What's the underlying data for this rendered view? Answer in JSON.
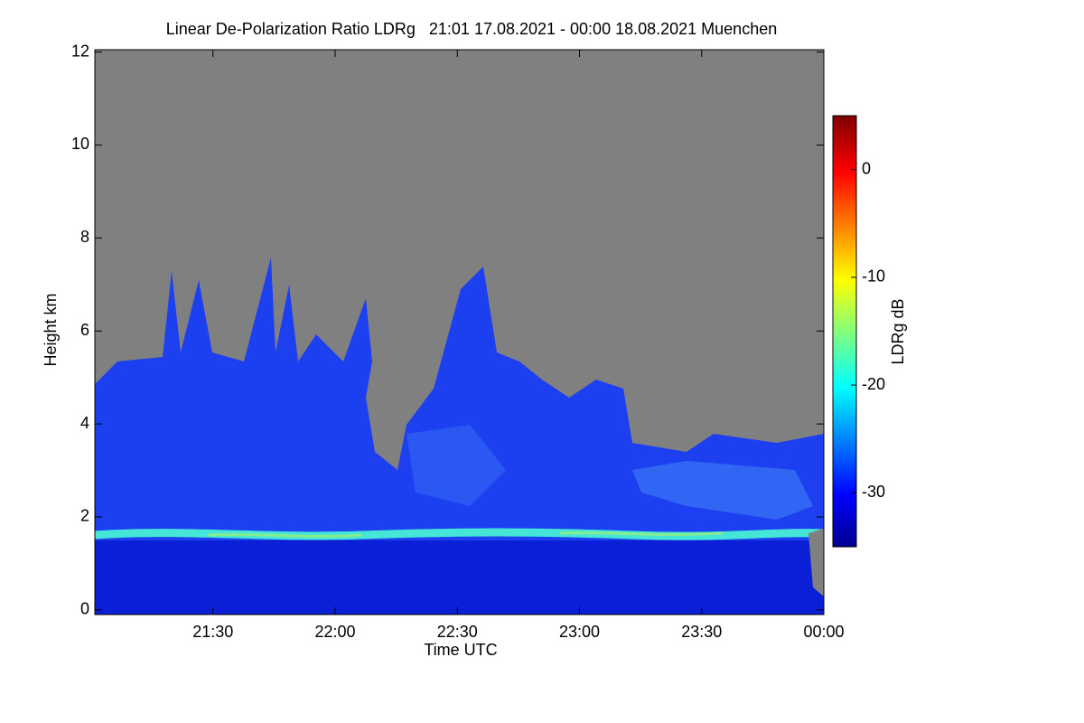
{
  "chart_data": {
    "type": "heatmap",
    "title": "Linear De-Polarization Ratio LDRg   21:01 17.08.2021 - 00:00 18.08.2021 Muenchen",
    "xlabel": "Time UTC",
    "ylabel": "Height km",
    "xlim": [
      21.0167,
      24
    ],
    "xticks": [
      {
        "value": 21.5,
        "label": "21:30"
      },
      {
        "value": 22,
        "label": "22:00"
      },
      {
        "value": 22.5,
        "label": "22:30"
      },
      {
        "value": 23,
        "label": "23:00"
      },
      {
        "value": 23.5,
        "label": "23:30"
      },
      {
        "value": 24,
        "label": "00:00"
      }
    ],
    "ylim": [
      -0.1,
      12.05
    ],
    "yticks": [
      0,
      2,
      4,
      6,
      8,
      10,
      12
    ],
    "colorbar": {
      "label": "LDRg dB",
      "lim": [
        -35,
        5
      ],
      "ticks": [
        0,
        -10,
        -20,
        -30
      ]
    }
  }
}
